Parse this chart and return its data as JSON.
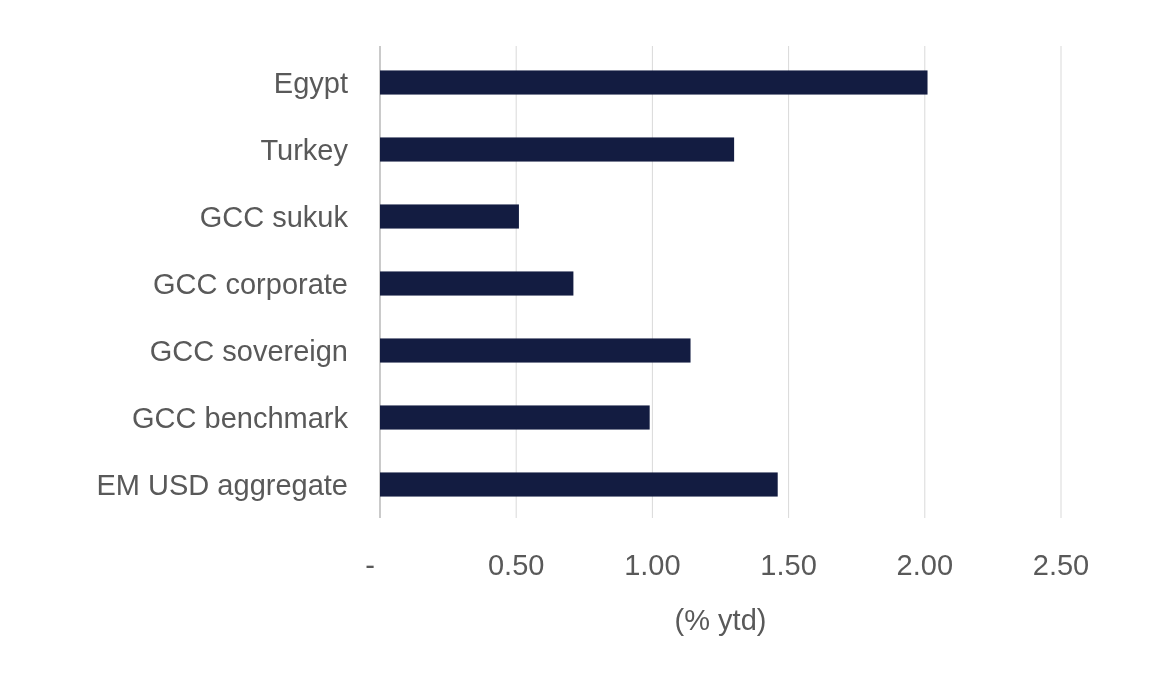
{
  "chart_data": {
    "type": "bar",
    "orientation": "horizontal",
    "categories": [
      "Egypt",
      "Turkey",
      "GCC sukuk",
      "GCC corporate",
      "GCC sovereign",
      "GCC benchmark",
      "EM USD aggregate"
    ],
    "values": [
      2.01,
      1.3,
      0.51,
      0.71,
      1.14,
      0.99,
      1.46
    ],
    "color": "#131c41",
    "xlim": [
      0,
      2.5
    ],
    "xticks": [
      {
        "value": 0,
        "label": "-"
      },
      {
        "value": 0.5,
        "label": "0.50"
      },
      {
        "value": 1,
        "label": "1.00"
      },
      {
        "value": 1.5,
        "label": "1.50"
      },
      {
        "value": 2,
        "label": "2.00"
      },
      {
        "value": 2.5,
        "label": "2.50"
      }
    ],
    "xlabel": "(% ytd)",
    "grid": "x"
  }
}
